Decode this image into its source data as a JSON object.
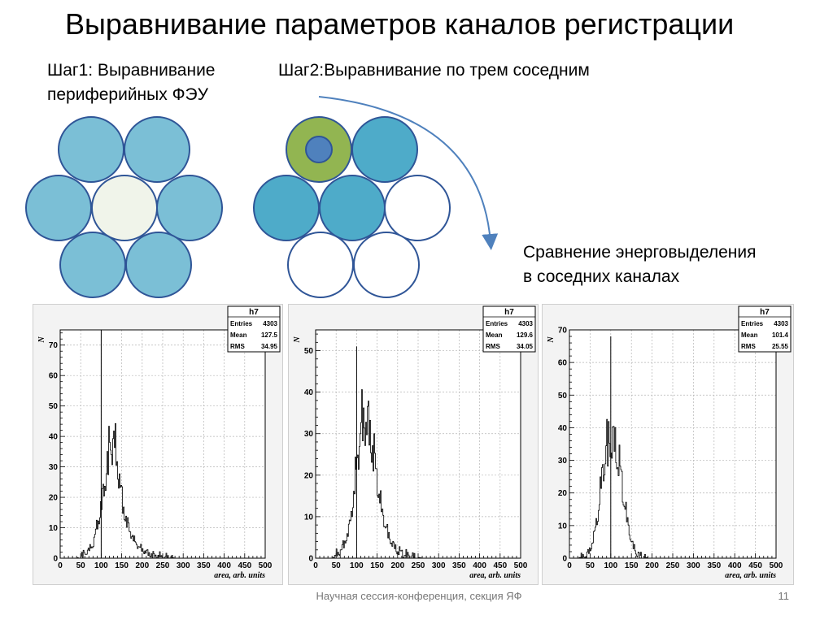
{
  "slide": {
    "title": "Выравнивание параметров каналов регистрации",
    "step1_line1": "Шаг1: Выравнивание",
    "step1_line2": "периферийных ФЭУ",
    "step2": "Шаг2:Выравнивание по трем соседним",
    "compare_line1": "Сравнение энерговыделения",
    "compare_line2": "в соседних каналах",
    "footer": "Научная сессия-конференция, секция ЯФ",
    "page_number": "11"
  },
  "colors": {
    "light_blue": "#7bbfd6",
    "medium_blue": "#4eabc9",
    "center_cream": "#f0f4ea",
    "outline_blue": "#2f5597",
    "green": "#92b551",
    "dot_blue": "#4f81bd",
    "arrow_blue": "#4f81bd"
  },
  "chart_data": [
    {
      "type": "histogram",
      "stats": {
        "title": "h7",
        "entries_label": "Entries",
        "entries": "4303",
        "mean_label": "Mean",
        "mean": "127.5",
        "rms_label": "RMS",
        "rms": "34.95"
      },
      "xlabel": "area, arb. units",
      "ylabel": "N",
      "xlim": [
        0,
        500
      ],
      "ylim": [
        0,
        75
      ],
      "xticks": [
        0,
        50,
        100,
        150,
        200,
        250,
        300,
        350,
        400,
        450,
        500
      ],
      "yticks": [
        0,
        10,
        20,
        30,
        40,
        50,
        60,
        70
      ],
      "x": [
        40,
        50,
        60,
        70,
        80,
        90,
        100,
        110,
        120,
        130,
        140,
        150,
        160,
        170,
        180,
        190,
        200,
        210,
        220,
        230,
        240,
        250,
        260,
        270,
        280
      ],
      "y": [
        0,
        1,
        2,
        3,
        5,
        12,
        18,
        28,
        38,
        40,
        31,
        20,
        13,
        9,
        6,
        4,
        3,
        2,
        1.5,
        1,
        1,
        0.5,
        0.5,
        0.3,
        0
      ],
      "spike": {
        "x": 100,
        "y": 75
      }
    },
    {
      "type": "histogram",
      "stats": {
        "title": "h7",
        "entries_label": "Entries",
        "entries": "4303",
        "mean_label": "Mean",
        "mean": "129.6",
        "rms_label": "RMS",
        "rms": "34.05"
      },
      "xlabel": "area, arb. units",
      "ylabel": "N",
      "xlim": [
        0,
        500
      ],
      "ylim": [
        0,
        55
      ],
      "xticks": [
        0,
        50,
        100,
        150,
        200,
        250,
        300,
        350,
        400,
        450,
        500
      ],
      "yticks": [
        0,
        10,
        20,
        30,
        40,
        50
      ],
      "x": [
        40,
        50,
        60,
        70,
        80,
        90,
        100,
        110,
        120,
        130,
        140,
        150,
        160,
        170,
        180,
        190,
        200,
        210,
        220,
        230,
        240,
        250,
        260
      ],
      "y": [
        0,
        1,
        2,
        4,
        7,
        14,
        24,
        33,
        35,
        32,
        27,
        19,
        12,
        8,
        5,
        3,
        2,
        1.5,
        1,
        0.5,
        0.3,
        0.2,
        0
      ],
      "spike": {
        "x": 100,
        "y": 51
      }
    },
    {
      "type": "histogram",
      "stats": {
        "title": "h7",
        "entries_label": "Entries",
        "entries": "4303",
        "mean_label": "Mean",
        "mean": "101.4",
        "rms_label": "RMS",
        "rms": "25.55"
      },
      "xlabel": "area, arb. units",
      "ylabel": "N",
      "xlim": [
        0,
        500
      ],
      "ylim": [
        0,
        70
      ],
      "xticks": [
        0,
        50,
        100,
        150,
        200,
        250,
        300,
        350,
        400,
        450,
        500
      ],
      "yticks": [
        0,
        10,
        20,
        30,
        40,
        50,
        60,
        70
      ],
      "x": [
        20,
        30,
        40,
        50,
        60,
        70,
        80,
        90,
        100,
        110,
        120,
        130,
        140,
        150,
        160,
        170,
        180,
        190
      ],
      "y": [
        0,
        0.5,
        1,
        3,
        8,
        16,
        28,
        36,
        38,
        35,
        30,
        20,
        11,
        5,
        2,
        1,
        0.5,
        0
      ],
      "spike": {
        "x": 100,
        "y": 68
      }
    }
  ]
}
